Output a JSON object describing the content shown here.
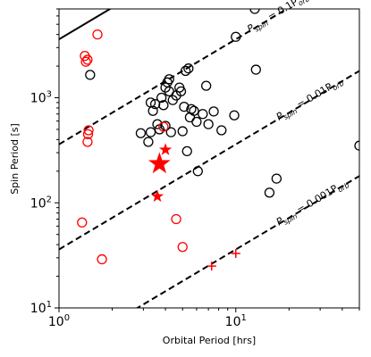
{
  "chart_data": {
    "type": "scatter",
    "xlabel": "Orbital Period [hrs]",
    "ylabel": "Spin Period [s]",
    "xscale": "log",
    "yscale": "log",
    "xlim": [
      1,
      50
    ],
    "ylim": [
      10,
      7000
    ],
    "xticks": [
      {
        "value": 1,
        "base": "10",
        "exp": "0"
      },
      {
        "value": 10,
        "base": "10",
        "exp": "1"
      }
    ],
    "yticks": [
      {
        "value": 10,
        "base": "10",
        "exp": "1"
      },
      {
        "value": 100,
        "base": "10",
        "exp": "2"
      },
      {
        "value": 1000,
        "base": "10",
        "exp": "3"
      }
    ],
    "reference_lines": [
      {
        "fraction": 0.1,
        "style": "dashed",
        "label_main": "P",
        "label_sub": "spin",
        "label_rest": " = 0.1P",
        "label_sub2": "orb"
      },
      {
        "fraction": 0.01,
        "style": "dashed",
        "label_main": "P",
        "label_sub": "spin",
        "label_rest": " = 0.01P",
        "label_sub2": "orb"
      },
      {
        "fraction": 0.001,
        "style": "dashed",
        "label_main": "P",
        "label_sub": "spin",
        "label_rest": " = 0.001P",
        "label_sub2": "orb"
      },
      {
        "fraction": 1.0,
        "style": "solid",
        "label_main": "",
        "label_sub": "",
        "label_rest": "",
        "label_sub2": ""
      }
    ],
    "colors": {
      "black": "#000000",
      "red": "#ff0000"
    },
    "series": [
      {
        "marker": "open-circle",
        "color": "#000000",
        "points": [
          [
            1.5,
            1650
          ],
          [
            2.9,
            460
          ],
          [
            3.2,
            380
          ],
          [
            3.3,
            470
          ],
          [
            3.3,
            900
          ],
          [
            3.4,
            750
          ],
          [
            3.5,
            870
          ],
          [
            3.6,
            560
          ],
          [
            3.7,
            500
          ],
          [
            3.8,
            1000
          ],
          [
            3.9,
            850
          ],
          [
            4.0,
            1250
          ],
          [
            4.0,
            540
          ],
          [
            4.1,
            1400
          ],
          [
            4.2,
            1150
          ],
          [
            4.2,
            1500
          ],
          [
            4.3,
            470
          ],
          [
            4.4,
            950
          ],
          [
            4.6,
            1050
          ],
          [
            4.8,
            1250
          ],
          [
            4.9,
            1150
          ],
          [
            5.0,
            480
          ],
          [
            5.1,
            820
          ],
          [
            5.2,
            1800
          ],
          [
            5.3,
            310
          ],
          [
            5.4,
            1900
          ],
          [
            5.5,
            650
          ],
          [
            5.6,
            780
          ],
          [
            5.8,
            750
          ],
          [
            6.0,
            590
          ],
          [
            6.1,
            200
          ],
          [
            6.5,
            700
          ],
          [
            6.8,
            1300
          ],
          [
            7.0,
            560
          ],
          [
            7.5,
            740
          ],
          [
            8.3,
            490
          ],
          [
            9.8,
            680
          ],
          [
            10.0,
            3800
          ],
          [
            12.8,
            7000
          ],
          [
            13.0,
            1850
          ],
          [
            15.5,
            125
          ],
          [
            17.0,
            170
          ],
          [
            50.0,
            350
          ]
        ]
      },
      {
        "marker": "open-circle",
        "color": "#ff0000",
        "points": [
          [
            1.35,
            65
          ],
          [
            1.4,
            2500
          ],
          [
            1.42,
            2200
          ],
          [
            1.45,
            2300
          ],
          [
            1.45,
            380
          ],
          [
            1.46,
            450
          ],
          [
            1.47,
            490
          ],
          [
            1.65,
            4000
          ],
          [
            1.75,
            29
          ],
          [
            3.9,
            530
          ],
          [
            4.6,
            70
          ],
          [
            5.0,
            38
          ]
        ]
      },
      {
        "marker": "star",
        "color": "#ff0000",
        "points": [
          [
            3.7,
            235,
            "large"
          ],
          [
            4.0,
            320,
            "small"
          ],
          [
            3.6,
            115,
            "small"
          ]
        ]
      },
      {
        "marker": "plus",
        "color": "#ff0000",
        "points": [
          [
            7.3,
            25
          ],
          [
            10.0,
            33
          ]
        ]
      }
    ]
  }
}
